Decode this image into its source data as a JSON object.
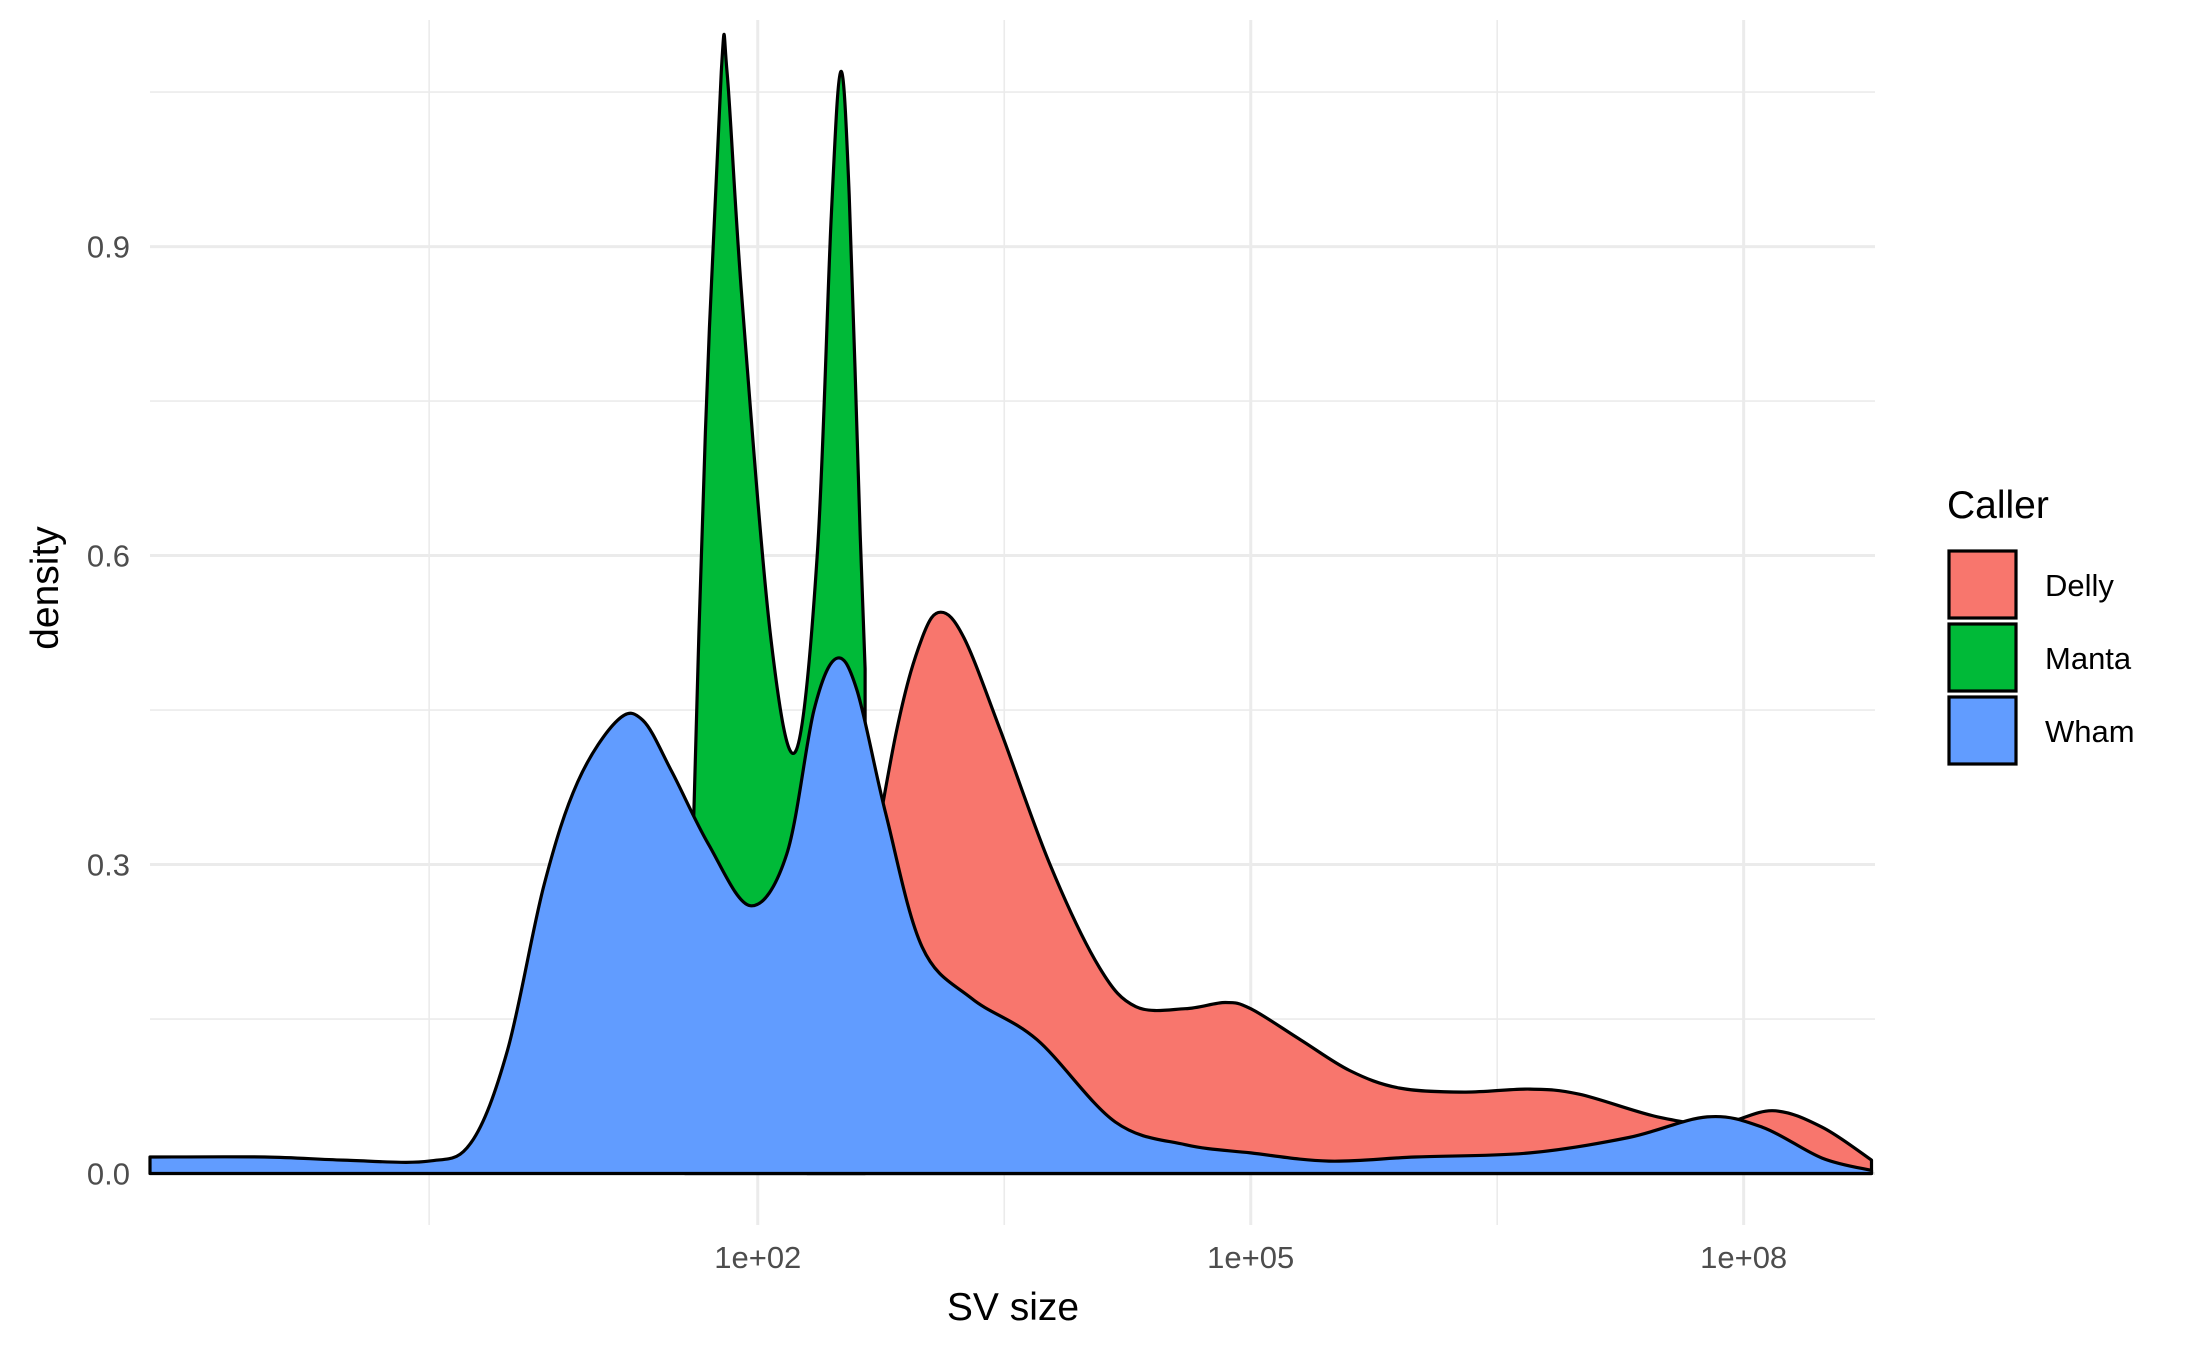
{
  "chart_data": {
    "type": "area",
    "title": "",
    "xlabel": "SV size",
    "ylabel": "density",
    "x_scale": "log10",
    "xlim": [
      0.02,
      630000000.0
    ],
    "ylim": [
      -0.05,
      1.12
    ],
    "x_ticks": [
      {
        "value": 100,
        "label": "1e+02"
      },
      {
        "value": 100000,
        "label": "1e+05"
      },
      {
        "value": 100000000,
        "label": "1e+08"
      }
    ],
    "y_ticks": [
      {
        "value": 0.0,
        "label": "0.0"
      },
      {
        "value": 0.3,
        "label": "0.3"
      },
      {
        "value": 0.6,
        "label": "0.6"
      },
      {
        "value": 0.9,
        "label": "0.9"
      }
    ],
    "x_minor_ticks": [
      1,
      3162,
      3162278
    ],
    "y_minor_ticks": [
      0.15,
      0.45,
      0.75,
      1.05
    ],
    "grid": true,
    "legend": {
      "title": "Caller",
      "position": "right"
    },
    "series": [
      {
        "name": "Delly",
        "color": "#F8766D",
        "points": [
          [
            200,
            0
          ],
          [
            400,
            0.22
          ],
          [
            700,
            0.43
          ],
          [
            1000,
            0.52
          ],
          [
            1300,
            0.545
          ],
          [
            1800,
            0.52
          ],
          [
            3000,
            0.43
          ],
          [
            6000,
            0.3
          ],
          [
            12000,
            0.2
          ],
          [
            20000,
            0.162
          ],
          [
            40000,
            0.16
          ],
          [
            70000,
            0.166
          ],
          [
            100000,
            0.16
          ],
          [
            200000,
            0.13
          ],
          [
            400000,
            0.1
          ],
          [
            800000,
            0.083
          ],
          [
            2000000,
            0.079
          ],
          [
            5000000,
            0.082
          ],
          [
            10000000,
            0.077
          ],
          [
            30000000,
            0.055
          ],
          [
            70000000,
            0.048
          ],
          [
            150000000,
            0.061
          ],
          [
            300000000,
            0.045
          ],
          [
            600000000,
            0.013
          ]
        ]
      },
      {
        "name": "Manta",
        "color": "#00BA38",
        "points": [
          [
            36,
            0
          ],
          [
            40,
            0.3
          ],
          [
            48,
            0.72
          ],
          [
            60,
            1.07
          ],
          [
            65,
            1.07
          ],
          [
            80,
            0.85
          ],
          [
            120,
            0.52
          ],
          [
            170,
            0.41
          ],
          [
            230,
            0.6
          ],
          [
            280,
            0.93
          ],
          [
            320,
            1.07
          ],
          [
            360,
            0.95
          ],
          [
            420,
            0.62
          ],
          [
            450,
            0.49
          ]
        ]
      },
      {
        "name": "Wham",
        "color": "#619CFF",
        "points": [
          [
            0.02,
            0.016
          ],
          [
            0.1,
            0.016
          ],
          [
            0.3,
            0.013
          ],
          [
            1,
            0.012
          ],
          [
            1.8,
            0.03
          ],
          [
            3,
            0.12
          ],
          [
            5,
            0.28
          ],
          [
            8,
            0.38
          ],
          [
            14,
            0.44
          ],
          [
            20,
            0.44
          ],
          [
            30,
            0.39
          ],
          [
            50,
            0.32
          ],
          [
            90,
            0.26
          ],
          [
            150,
            0.31
          ],
          [
            220,
            0.45
          ],
          [
            300,
            0.5
          ],
          [
            400,
            0.47
          ],
          [
            600,
            0.35
          ],
          [
            1000,
            0.22
          ],
          [
            2000,
            0.17
          ],
          [
            5000,
            0.13
          ],
          [
            15000,
            0.05
          ],
          [
            40000,
            0.028
          ],
          [
            100000,
            0.02
          ],
          [
            300000,
            0.012
          ],
          [
            1000000,
            0.016
          ],
          [
            5000000,
            0.02
          ],
          [
            20000000,
            0.035
          ],
          [
            60000000,
            0.055
          ],
          [
            130000000,
            0.045
          ],
          [
            300000000,
            0.015
          ],
          [
            600000000,
            0.003
          ]
        ]
      }
    ]
  }
}
